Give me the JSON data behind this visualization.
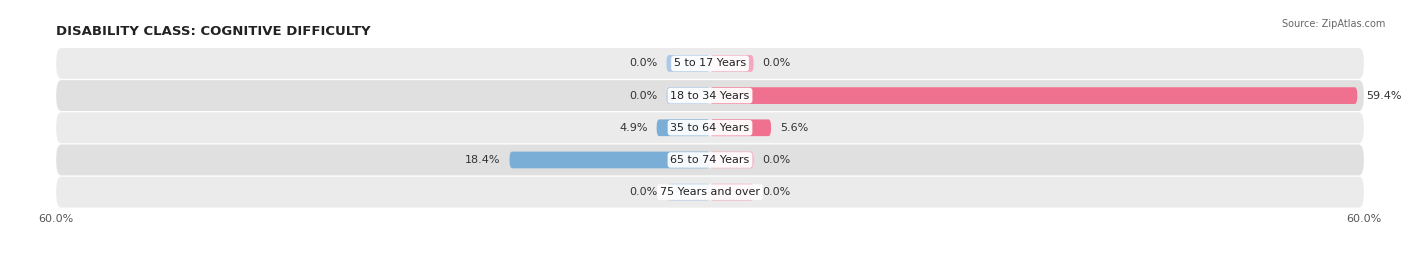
{
  "title": "DISABILITY CLASS: COGNITIVE DIFFICULTY",
  "source": "Source: ZipAtlas.com",
  "categories": [
    "5 to 17 Years",
    "18 to 34 Years",
    "35 to 64 Years",
    "65 to 74 Years",
    "75 Years and over"
  ],
  "male_values": [
    0.0,
    0.0,
    4.9,
    18.4,
    0.0
  ],
  "female_values": [
    0.0,
    59.4,
    5.6,
    0.0,
    0.0
  ],
  "max_val": 60.0,
  "male_color": "#7aaed6",
  "female_color": "#f07090",
  "male_color_light": "#aec8e8",
  "female_color_light": "#f4a8be",
  "row_colors": [
    "#ebebeb",
    "#e0e0e0",
    "#ebebeb",
    "#e0e0e0",
    "#ebebeb"
  ],
  "title_fontsize": 9.5,
  "label_fontsize": 8,
  "value_fontsize": 8,
  "tick_fontsize": 8,
  "bar_height": 0.52,
  "min_stub": 4.0,
  "figsize": [
    14.06,
    2.69
  ],
  "dpi": 100
}
